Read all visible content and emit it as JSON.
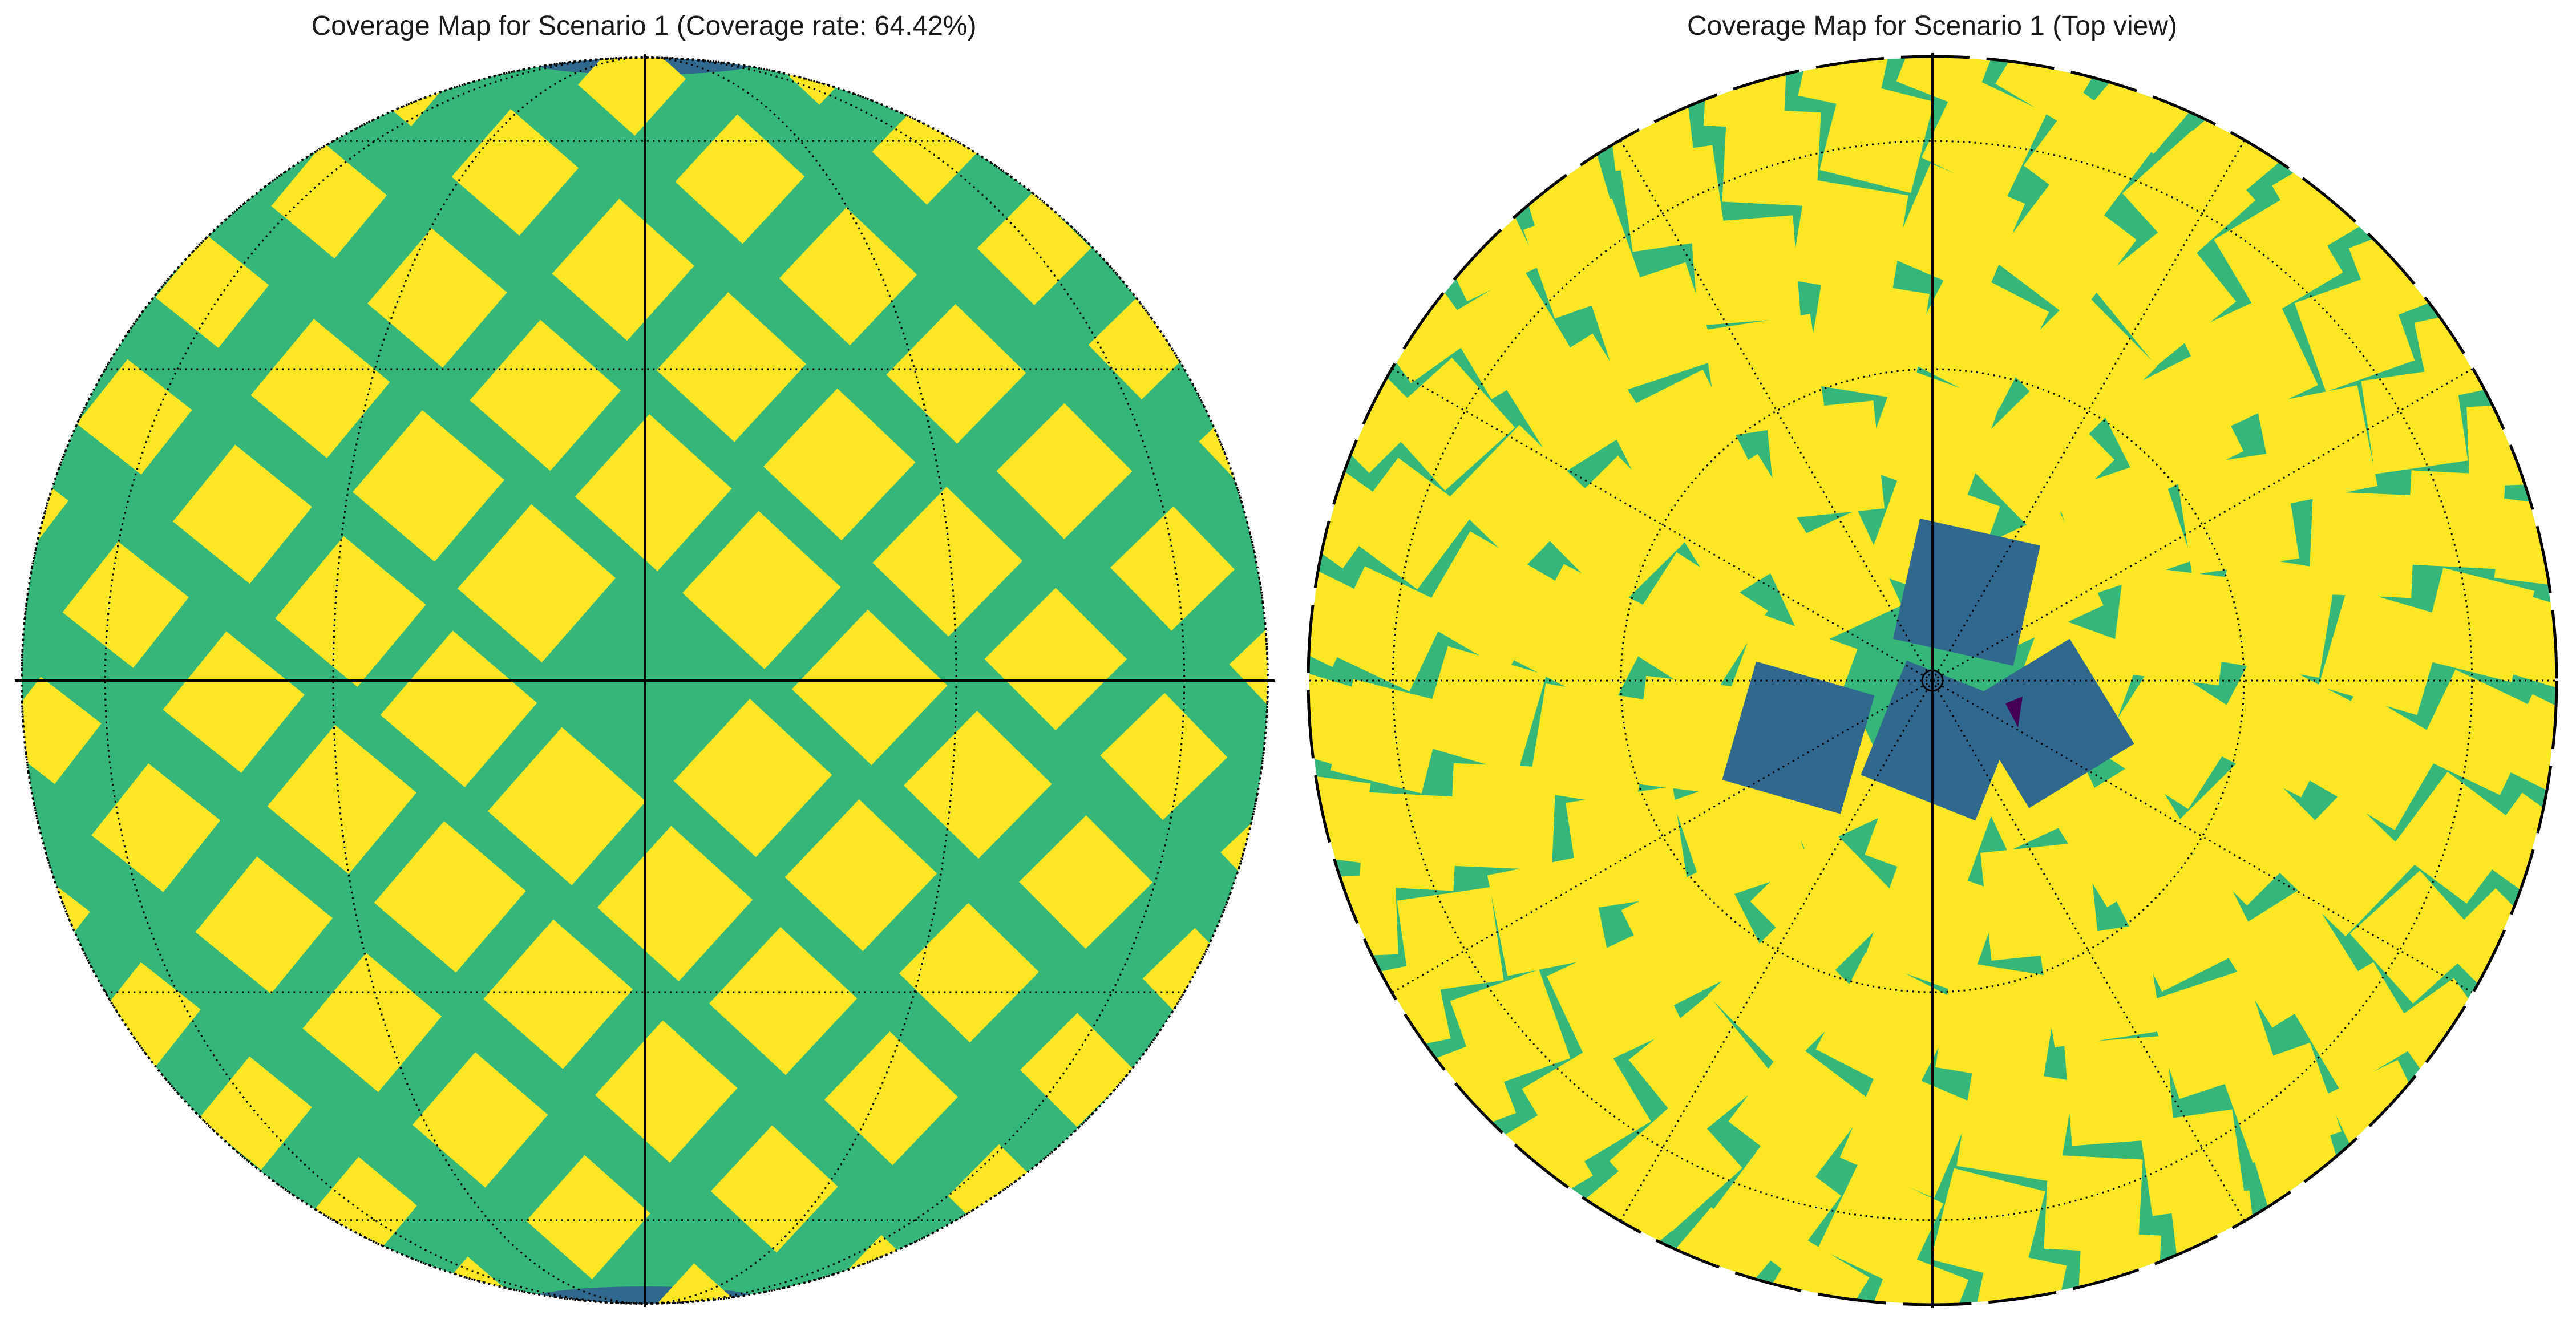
{
  "palette": {
    "covered": "#fde725",
    "gap": "#35b779",
    "double": "#31688e",
    "triple": "#440154",
    "axis": "#000000",
    "grid": "#000000"
  },
  "chart_data": [
    {
      "type": "heatmap",
      "title": "Coverage Map for Scenario 1 (Coverage rate: 64.42%)",
      "view": "side",
      "coverage_rate_percent": 64.42,
      "graticule": {
        "style": "dotted",
        "parallels_deg": [
          -60,
          -30,
          0,
          30,
          60
        ],
        "meridians_deg": [
          -90,
          -60,
          -30,
          0,
          30,
          60,
          90
        ]
      },
      "classes": [
        "gap",
        "covered",
        "double"
      ],
      "grid": true
    },
    {
      "type": "heatmap",
      "title": "Coverage Map for Scenario 1 (Top view)",
      "view": "top",
      "graticule": {
        "style": "dotted",
        "rings_deg_from_pole": [
          30,
          60
        ],
        "spokes_deg": [
          0,
          30,
          60,
          90,
          120,
          150,
          180,
          210,
          240,
          270,
          300,
          330
        ]
      },
      "classes": [
        "gap",
        "covered",
        "double",
        "triple"
      ],
      "grid": true
    }
  ]
}
